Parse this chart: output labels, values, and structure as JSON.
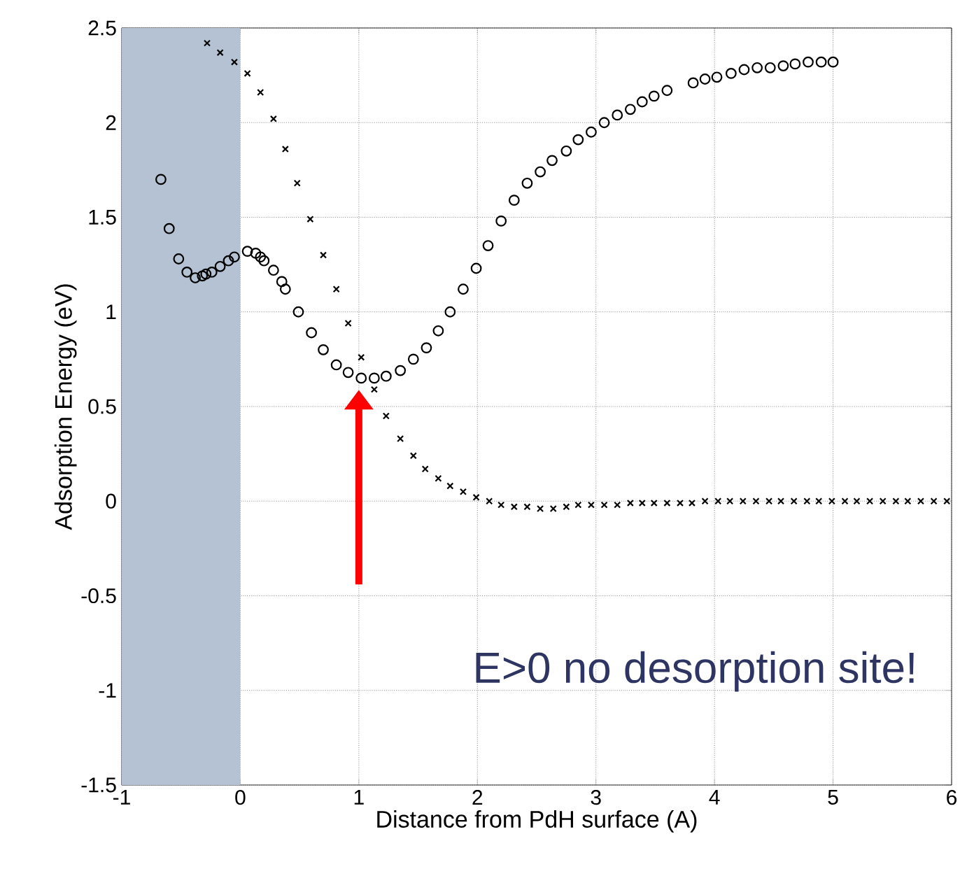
{
  "chart_data": {
    "type": "scatter",
    "xlabel": "Distance from PdH surface (A)",
    "ylabel": "Adsorption Energy (eV)",
    "xlim": [
      -1,
      6
    ],
    "ylim": [
      -1.5,
      2.5
    ],
    "xticks": [
      -1,
      0,
      1,
      2,
      3,
      4,
      5,
      6
    ],
    "yticks": [
      -1.5,
      -1,
      -0.5,
      0,
      0.5,
      1,
      1.5,
      2,
      2.5
    ],
    "grid": true,
    "bands": [
      {
        "axis": "x",
        "from": -1,
        "to": 0,
        "color": "#b4c2d4"
      }
    ],
    "annotations": [
      "E>0 no desorption site!"
    ],
    "series": [
      {
        "color": "#000000",
        "marker": "circle",
        "x": [
          -0.67,
          -0.6,
          -0.52,
          -0.45,
          -0.38,
          -0.32,
          -0.29,
          -0.24,
          -0.17,
          -0.1,
          -0.05,
          0.06,
          0.13,
          0.17,
          0.2,
          0.28,
          0.35,
          0.38,
          0.49,
          0.6,
          0.7,
          0.81,
          0.91,
          1.02,
          1.13,
          1.23,
          1.35,
          1.46,
          1.57,
          1.67,
          1.77,
          1.88,
          1.99,
          2.09,
          2.2,
          2.31,
          2.42,
          2.53,
          2.63,
          2.75,
          2.85,
          2.96,
          3.07,
          3.18,
          3.29,
          3.39,
          3.49,
          3.6,
          3.82,
          3.92,
          4.02,
          4.14,
          4.25,
          4.36,
          4.47,
          4.58,
          4.68,
          4.79,
          4.9,
          5.0
        ],
        "values": [
          1.7,
          1.44,
          1.28,
          1.21,
          1.18,
          1.19,
          1.2,
          1.21,
          1.24,
          1.27,
          1.29,
          1.32,
          1.31,
          1.29,
          1.27,
          1.22,
          1.16,
          1.12,
          1.0,
          0.89,
          0.8,
          0.72,
          0.68,
          0.65,
          0.65,
          0.66,
          0.69,
          0.75,
          0.81,
          0.9,
          1.0,
          1.12,
          1.23,
          1.35,
          1.48,
          1.59,
          1.68,
          1.74,
          1.8,
          1.85,
          1.91,
          1.95,
          2.0,
          2.04,
          2.07,
          2.11,
          2.14,
          2.17,
          2.21,
          2.23,
          2.24,
          2.26,
          2.28,
          2.29,
          2.29,
          2.3,
          2.31,
          2.32,
          2.32,
          2.32
        ]
      },
      {
        "color": "#000000",
        "marker": "cross",
        "x": [
          -0.28,
          -0.17,
          -0.05,
          0.06,
          0.17,
          0.28,
          0.38,
          0.48,
          0.59,
          0.7,
          0.81,
          0.91,
          1.02,
          1.13,
          1.23,
          1.35,
          1.46,
          1.56,
          1.67,
          1.77,
          1.88,
          1.99,
          2.1,
          2.2,
          2.31,
          2.42,
          2.53,
          2.64,
          2.75,
          2.85,
          2.96,
          3.07,
          3.18,
          3.29,
          3.39,
          3.49,
          3.6,
          3.71,
          3.81,
          3.92,
          4.03,
          4.13,
          4.24,
          4.35,
          4.46,
          4.56,
          4.67,
          4.78,
          4.88,
          4.99,
          5.1,
          5.2,
          5.31,
          5.42,
          5.53,
          5.63,
          5.74,
          5.85,
          5.96
        ],
        "values": [
          2.42,
          2.37,
          2.32,
          2.26,
          2.16,
          2.02,
          1.86,
          1.68,
          1.49,
          1.3,
          1.12,
          0.94,
          0.76,
          0.59,
          0.45,
          0.33,
          0.24,
          0.17,
          0.12,
          0.08,
          0.05,
          0.02,
          0.0,
          -0.02,
          -0.03,
          -0.03,
          -0.04,
          -0.04,
          -0.03,
          -0.02,
          -0.02,
          -0.02,
          -0.02,
          -0.01,
          -0.01,
          -0.01,
          -0.01,
          -0.01,
          -0.01,
          0.0,
          0.0,
          0.0,
          0.0,
          0.0,
          0.0,
          0.0,
          0.0,
          0.0,
          0.0,
          0.0,
          0.0,
          0.0,
          0.0,
          0.0,
          0.0,
          0.0,
          0.0,
          0.0,
          0.0
        ]
      }
    ]
  }
}
